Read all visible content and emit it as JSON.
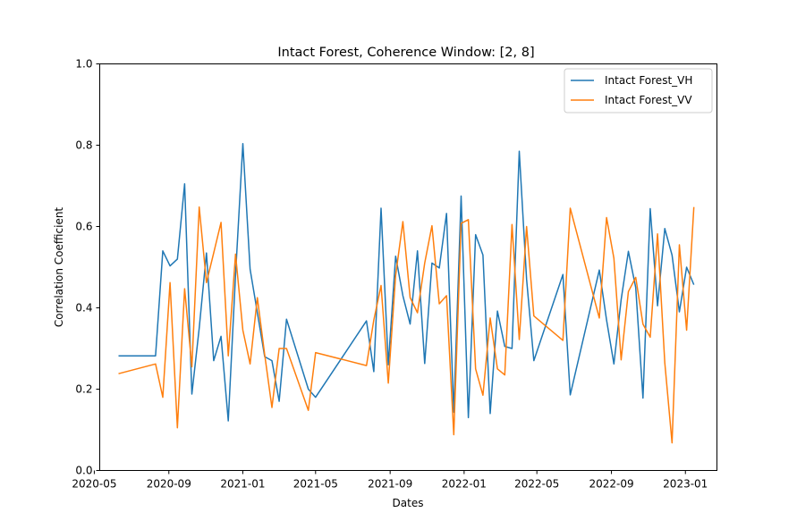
{
  "chart_data": {
    "type": "line",
    "title": "Intact Forest, Coherence Window: [2, 8]",
    "xlabel": "Dates",
    "ylabel": "Correlation Coefficient",
    "ylim": [
      0,
      1
    ],
    "xlim": [
      "2020-05-10",
      "2023-02-22"
    ],
    "grid": false,
    "legend_position": "top-right",
    "x_ticks": [
      "2020-05",
      "2020-09",
      "2021-01",
      "2021-05",
      "2021-09",
      "2022-01",
      "2022-05",
      "2022-09",
      "2023-01"
    ],
    "y_ticks": [
      "0.0",
      "0.2",
      "0.4",
      "0.6",
      "0.8",
      "1.0"
    ],
    "series": [
      {
        "name": "Intact Forest_VH",
        "color": "#1f77b4",
        "x": [
          "2020-06-10",
          "2020-08-10",
          "2020-08-22",
          "2020-09-03",
          "2020-09-15",
          "2020-09-27",
          "2020-10-09",
          "2020-10-21",
          "2020-11-02",
          "2020-11-14",
          "2020-11-26",
          "2020-12-08",
          "2020-12-20",
          "2021-01-01",
          "2021-01-13",
          "2021-02-06",
          "2021-02-18",
          "2021-03-02",
          "2021-03-14",
          "2021-04-19",
          "2021-05-01",
          "2021-07-24",
          "2021-08-05",
          "2021-08-17",
          "2021-08-29",
          "2021-09-10",
          "2021-09-22",
          "2021-10-04",
          "2021-10-16",
          "2021-10-28",
          "2021-11-09",
          "2021-11-21",
          "2021-12-03",
          "2021-12-15",
          "2021-12-27",
          "2022-01-08",
          "2022-01-20",
          "2022-02-01",
          "2022-02-13",
          "2022-02-25",
          "2022-03-09",
          "2022-03-21",
          "2022-04-02",
          "2022-04-14",
          "2022-04-26",
          "2022-06-13",
          "2022-06-25",
          "2022-08-12",
          "2022-08-24",
          "2022-09-05",
          "2022-09-17",
          "2022-09-29",
          "2022-10-11",
          "2022-10-23",
          "2022-11-04",
          "2022-11-16",
          "2022-11-28",
          "2022-12-10",
          "2022-12-22",
          "2023-01-03",
          "2023-01-15"
        ],
        "values": [
          0.282,
          0.282,
          0.54,
          0.503,
          0.52,
          0.705,
          0.188,
          0.35,
          0.535,
          0.27,
          0.33,
          0.122,
          0.48,
          0.804,
          0.495,
          0.28,
          0.27,
          0.17,
          0.372,
          0.2,
          0.18,
          0.368,
          0.243,
          0.645,
          0.26,
          0.527,
          0.43,
          0.36,
          0.54,
          0.263,
          0.51,
          0.498,
          0.632,
          0.143,
          0.675,
          0.13,
          0.58,
          0.53,
          0.14,
          0.392,
          0.305,
          0.3,
          0.785,
          0.47,
          0.27,
          0.482,
          0.186,
          0.493,
          0.37,
          0.262,
          0.42,
          0.539,
          0.45,
          0.178,
          0.644,
          0.405,
          0.595,
          0.53,
          0.39,
          0.5,
          0.457
        ]
      },
      {
        "name": "Intact Forest_VV",
        "color": "#ff7f0e",
        "x": [
          "2020-06-10",
          "2020-08-10",
          "2020-08-22",
          "2020-09-03",
          "2020-09-15",
          "2020-09-27",
          "2020-10-09",
          "2020-10-21",
          "2020-11-02",
          "2020-11-14",
          "2020-11-26",
          "2020-12-08",
          "2020-12-20",
          "2021-01-01",
          "2021-01-13",
          "2021-01-25",
          "2021-02-06",
          "2021-02-18",
          "2021-03-02",
          "2021-03-14",
          "2021-04-19",
          "2021-05-01",
          "2021-07-24",
          "2021-08-05",
          "2021-08-17",
          "2021-08-29",
          "2021-09-10",
          "2021-09-22",
          "2021-10-04",
          "2021-10-16",
          "2021-10-28",
          "2021-11-09",
          "2021-11-21",
          "2021-12-03",
          "2021-12-15",
          "2021-12-27",
          "2022-01-08",
          "2022-01-20",
          "2022-02-01",
          "2022-02-13",
          "2022-02-25",
          "2022-03-09",
          "2022-03-21",
          "2022-04-02",
          "2022-04-14",
          "2022-04-26",
          "2022-06-13",
          "2022-06-25",
          "2022-08-12",
          "2022-08-24",
          "2022-09-05",
          "2022-09-17",
          "2022-09-29",
          "2022-10-11",
          "2022-10-23",
          "2022-11-04",
          "2022-11-16",
          "2022-11-28",
          "2022-12-10",
          "2022-12-22",
          "2023-01-03",
          "2023-01-15"
        ],
        "values": [
          0.238,
          0.262,
          0.18,
          0.462,
          0.105,
          0.447,
          0.255,
          0.648,
          0.462,
          0.535,
          0.61,
          0.282,
          0.532,
          0.345,
          0.262,
          0.425,
          0.285,
          0.155,
          0.3,
          0.3,
          0.148,
          0.29,
          0.258,
          0.37,
          0.455,
          0.215,
          0.48,
          0.612,
          0.425,
          0.388,
          0.51,
          0.602,
          0.41,
          0.43,
          0.088,
          0.608,
          0.617,
          0.25,
          0.185,
          0.375,
          0.25,
          0.235,
          0.605,
          0.322,
          0.6,
          0.38,
          0.32,
          0.645,
          0.375,
          0.622,
          0.522,
          0.272,
          0.44,
          0.475,
          0.36,
          0.328,
          0.582,
          0.265,
          0.068,
          0.555,
          0.345,
          0.648
        ]
      }
    ]
  }
}
